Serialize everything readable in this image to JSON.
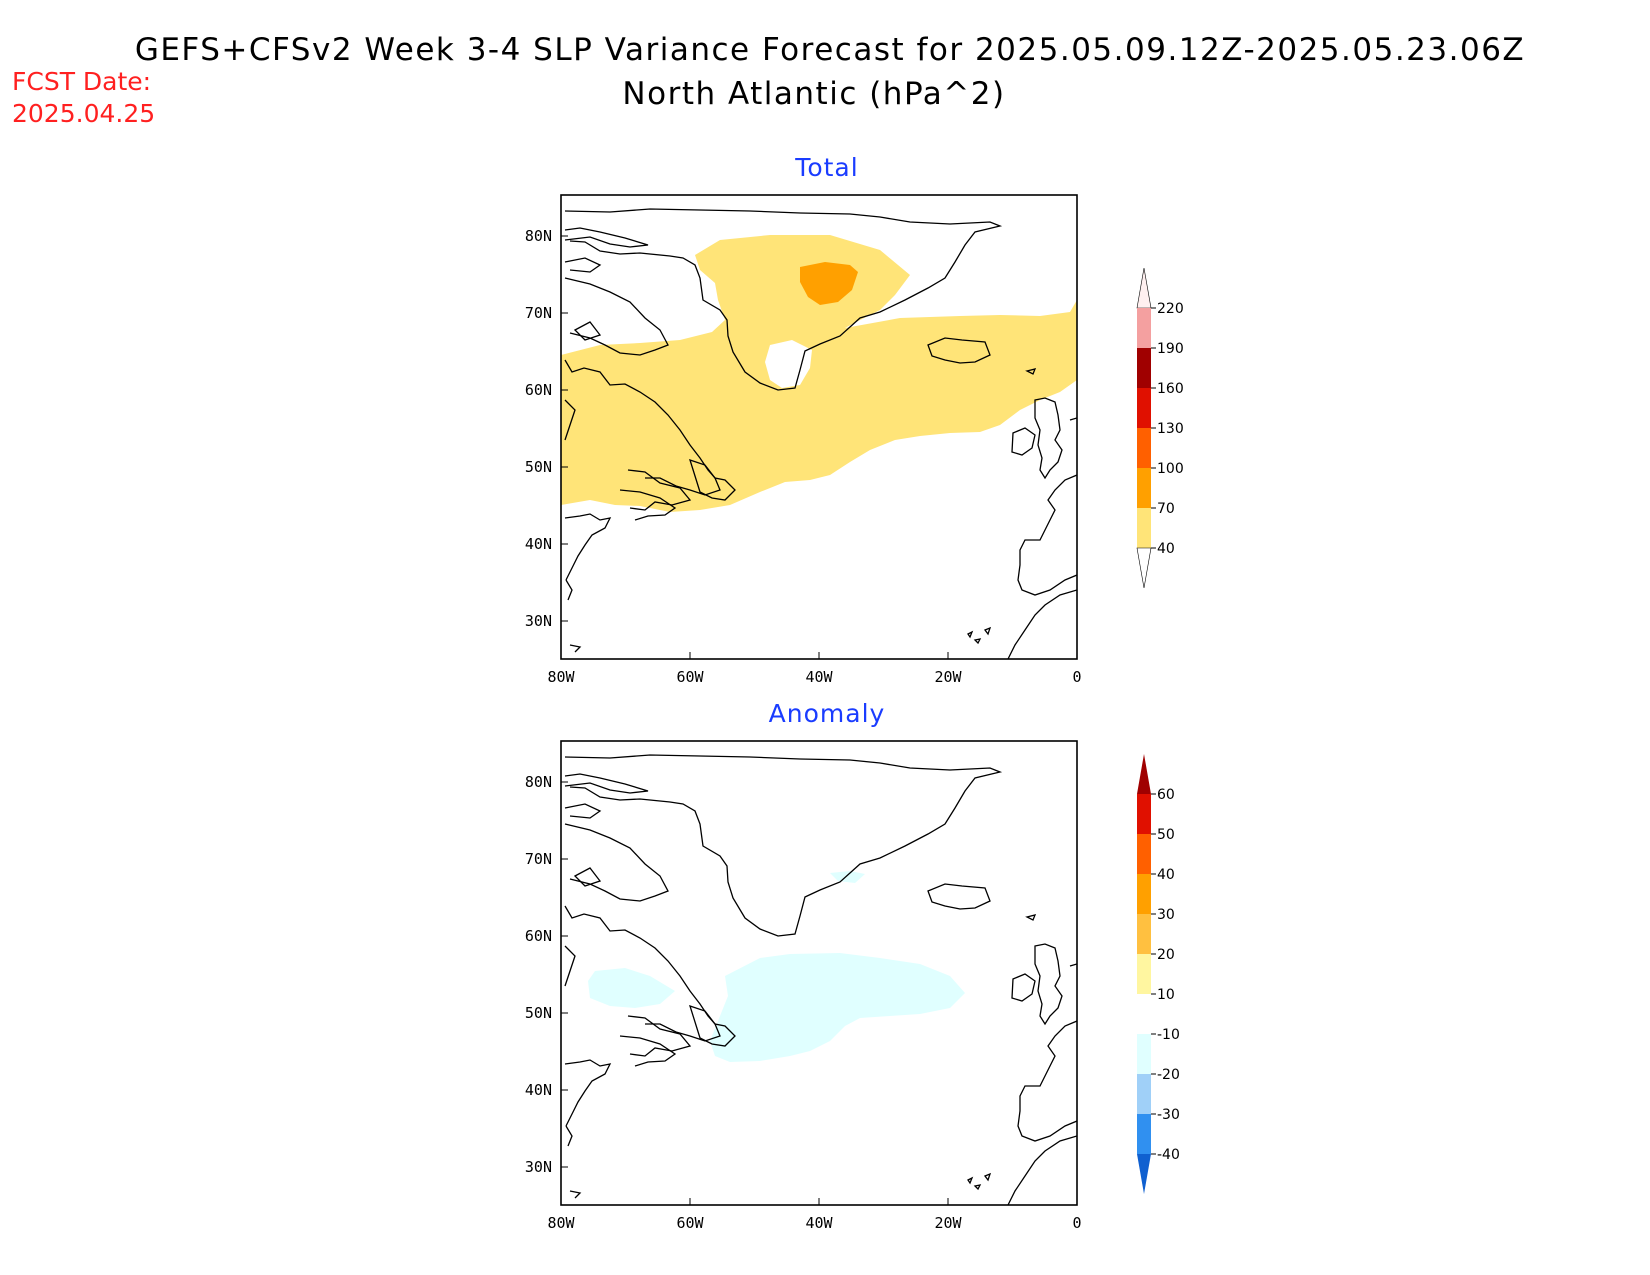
{
  "header": {
    "title_line1": "GEFS+CFSv2 Week 3-4 SLP Variance Forecast for 2025.05.09.12Z-2025.05.23.06Z",
    "title_line2": "North Atlantic (hPa^2)",
    "fcst_label": "FCST Date:",
    "fcst_date": "2025.04.25"
  },
  "axes": {
    "lat_ticks": [
      "80N",
      "70N",
      "60N",
      "50N",
      "40N",
      "30N"
    ],
    "lon_ticks": [
      "80W",
      "60W",
      "40W",
      "20W",
      "0"
    ],
    "lat_range": [
      25,
      85
    ],
    "lon_range": [
      -80,
      0
    ]
  },
  "panels": [
    {
      "title": "Total",
      "colorbar": {
        "labels": [
          "220",
          "190",
          "160",
          "130",
          "100",
          "70",
          "40"
        ],
        "colors": [
          "#fde0e0",
          "#f4a0a0",
          "#a00000",
          "#e01000",
          "#ff6000",
          "#ffa000",
          "#ffe478"
        ]
      }
    },
    {
      "title": "Anomaly",
      "colorbar": {
        "labels": [
          "60",
          "50",
          "40",
          "30",
          "20",
          "10",
          "-10",
          "-20",
          "-30",
          "-40"
        ],
        "colors": [
          "#a00000",
          "#e01000",
          "#ff6000",
          "#ffa000",
          "#ffc040",
          "#fff6a0",
          "#ffffff",
          "#e0ffff",
          "#a0d0f8",
          "#3090f0",
          "#1060d0"
        ]
      }
    }
  ],
  "chart_data": [
    {
      "type": "heatmap",
      "title": "Total",
      "variable": "SLP variance (hPa^2)",
      "contour_levels": [
        40,
        70,
        100,
        130,
        160,
        190,
        220
      ],
      "shaded_regions": [
        {
          "class": "40-70",
          "color": "#ffe478",
          "location": "central North Atlantic, Labrador, Greenland interior, east to 0 at 60-70N"
        },
        {
          "class": "70-100",
          "color": "#ffa000",
          "location": "central Greenland near 75N 40W"
        }
      ]
    },
    {
      "type": "heatmap",
      "title": "Anomaly",
      "variable": "SLP variance anomaly (hPa^2)",
      "contour_levels": [
        -40,
        -30,
        -20,
        -10,
        10,
        20,
        30,
        40,
        50,
        60
      ],
      "shaded_regions": [
        {
          "class": "-20 to -10",
          "color": "#e0ffff",
          "location": "mid-Atlantic 45-55N 55-20W and Labrador near 53N 70W"
        },
        {
          "class": "-20 to -10",
          "color": "#e0ffff",
          "location": "Denmark Strait near 68N 35W"
        }
      ]
    }
  ]
}
